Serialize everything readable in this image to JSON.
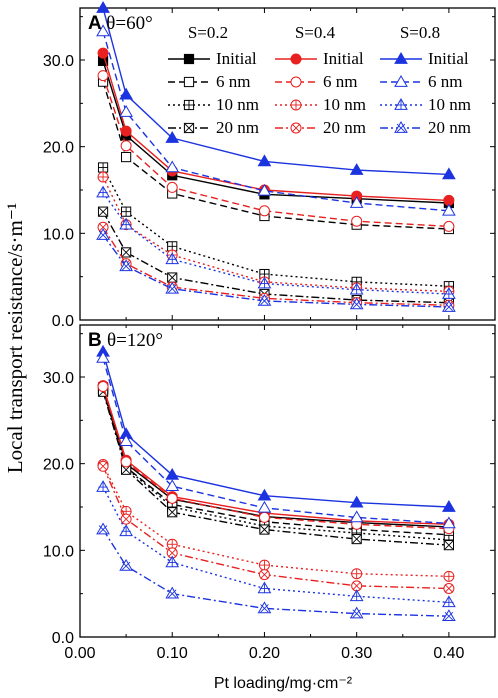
{
  "ylabel": "Local transport resistance/s·m⁻¹",
  "xlabel": "Pt loading/mg·cm⁻²",
  "chart_data": [
    {
      "type": "line",
      "panel_letter": "A",
      "theta_label": "θ=60°",
      "x": [
        0.025,
        0.05,
        0.1,
        0.2,
        0.3,
        0.4
      ],
      "xlim": [
        0,
        0.45
      ],
      "ylim": [
        0,
        36
      ],
      "xticks": [
        "0.00",
        "0.10",
        "0.20",
        "0.30",
        "0.40"
      ],
      "yticks": [
        "0.0",
        "10.0",
        "20.0",
        "30.0"
      ],
      "legend": {
        "placement": "top-right",
        "group_headers": [
          "S=0.2",
          "S=0.4",
          "S=0.8"
        ],
        "row_labels": [
          "Initial",
          "6 nm",
          "10 nm",
          "20 nm"
        ]
      },
      "series": [
        {
          "name": "Initial",
          "group": "S=0.2",
          "color": "#000000",
          "dash": "solid",
          "marker": "square-filled",
          "values": [
            29.9,
            21.3,
            16.7,
            14.5,
            14.0,
            13.5
          ]
        },
        {
          "name": "6 nm",
          "group": "S=0.2",
          "color": "#000000",
          "dash": "dash",
          "marker": "square-open",
          "values": [
            27.5,
            18.8,
            14.6,
            12.0,
            11.0,
            10.5
          ]
        },
        {
          "name": "10 nm",
          "group": "S=0.2",
          "color": "#000000",
          "dash": "dot",
          "marker": "square-plus",
          "values": [
            17.6,
            12.5,
            8.5,
            5.3,
            4.4,
            3.9
          ]
        },
        {
          "name": "20 nm",
          "group": "S=0.2",
          "color": "#000000",
          "dash": "dashdot",
          "marker": "square-x",
          "values": [
            12.5,
            7.8,
            4.9,
            3.0,
            2.3,
            2.0
          ]
        },
        {
          "name": "Initial",
          "group": "S=0.4",
          "color": "#e8201f",
          "dash": "solid",
          "marker": "circle-filled",
          "values": [
            30.8,
            21.8,
            17.2,
            15.0,
            14.3,
            13.8
          ]
        },
        {
          "name": "6 nm",
          "group": "S=0.4",
          "color": "#e8201f",
          "dash": "dash",
          "marker": "circle-open",
          "values": [
            28.2,
            20.1,
            15.3,
            12.6,
            11.4,
            10.8
          ]
        },
        {
          "name": "10 nm",
          "group": "S=0.4",
          "color": "#e8201f",
          "dash": "dot",
          "marker": "circle-plus",
          "values": [
            16.5,
            11.0,
            7.5,
            4.4,
            3.7,
            3.3
          ]
        },
        {
          "name": "20 nm",
          "group": "S=0.4",
          "color": "#e8201f",
          "dash": "dashdot",
          "marker": "circle-x",
          "values": [
            10.7,
            6.5,
            3.8,
            2.5,
            2.0,
            1.7
          ]
        },
        {
          "name": "Initial",
          "group": "S=0.8",
          "color": "#1c34e0",
          "dash": "solid",
          "marker": "triangle-filled",
          "values": [
            36.0,
            26.0,
            21.0,
            18.3,
            17.3,
            16.8
          ]
        },
        {
          "name": "6 nm",
          "group": "S=0.8",
          "color": "#1c34e0",
          "dash": "dash",
          "marker": "triangle-open",
          "values": [
            33.3,
            24.0,
            17.6,
            14.9,
            13.5,
            12.6
          ]
        },
        {
          "name": "10 nm",
          "group": "S=0.8",
          "color": "#1c34e0",
          "dash": "dot",
          "marker": "triangle-plus",
          "values": [
            14.7,
            11.0,
            7.0,
            4.2,
            3.5,
            3.0
          ]
        },
        {
          "name": "20 nm",
          "group": "S=0.8",
          "color": "#1c34e0",
          "dash": "dashdot",
          "marker": "triangle-x",
          "values": [
            9.8,
            6.2,
            3.6,
            2.2,
            1.8,
            1.5
          ]
        }
      ]
    },
    {
      "type": "line",
      "panel_letter": "B",
      "theta_label": "θ=120°",
      "x": [
        0.025,
        0.05,
        0.1,
        0.2,
        0.3,
        0.4
      ],
      "xlim": [
        0,
        0.45
      ],
      "ylim": [
        0,
        36
      ],
      "xticks": [
        "0.00",
        "0.10",
        "0.20",
        "0.30",
        "0.40"
      ],
      "yticks": [
        "0.0",
        "10.0",
        "20.0",
        "30.0"
      ],
      "series": [
        {
          "name": "Initial",
          "group": "S=0.2",
          "color": "#000000",
          "dash": "solid",
          "marker": "square-filled",
          "values": [
            28.8,
            20.0,
            15.9,
            13.9,
            13.2,
            12.7
          ]
        },
        {
          "name": "6 nm",
          "group": "S=0.2",
          "color": "#000000",
          "dash": "dash",
          "marker": "square-open",
          "values": [
            28.6,
            19.6,
            15.3,
            13.3,
            12.4,
            11.8
          ]
        },
        {
          "name": "10 nm",
          "group": "S=0.2",
          "color": "#000000",
          "dash": "dot",
          "marker": "square-plus",
          "values": [
            28.5,
            19.5,
            15.0,
            12.8,
            12.0,
            11.2
          ]
        },
        {
          "name": "20 nm",
          "group": "S=0.2",
          "color": "#000000",
          "dash": "dashdot",
          "marker": "square-x",
          "values": [
            28.3,
            19.3,
            14.4,
            12.4,
            11.3,
            10.6
          ]
        },
        {
          "name": "Initial",
          "group": "S=0.4",
          "color": "#e8201f",
          "dash": "solid",
          "marker": "circle-filled",
          "values": [
            29.0,
            20.4,
            16.2,
            14.3,
            13.4,
            13.0
          ]
        },
        {
          "name": "6 nm",
          "group": "S=0.4",
          "color": "#e8201f",
          "dash": "dash",
          "marker": "circle-open",
          "values": [
            28.9,
            20.2,
            16.0,
            13.8,
            13.0,
            12.5
          ]
        },
        {
          "name": "10 nm",
          "group": "S=0.4",
          "color": "#e8201f",
          "dash": "dot",
          "marker": "circle-plus",
          "values": [
            19.9,
            14.5,
            10.7,
            8.3,
            7.3,
            7.0
          ]
        },
        {
          "name": "20 nm",
          "group": "S=0.4",
          "color": "#e8201f",
          "dash": "dashdot",
          "marker": "circle-x",
          "values": [
            19.7,
            13.6,
            9.7,
            7.2,
            5.9,
            5.6
          ]
        },
        {
          "name": "Initial",
          "group": "S=0.8",
          "color": "#1c34e0",
          "dash": "solid",
          "marker": "triangle-filled",
          "values": [
            32.9,
            23.4,
            18.7,
            16.3,
            15.5,
            15.0
          ]
        },
        {
          "name": "6 nm",
          "group": "S=0.8",
          "color": "#1c34e0",
          "dash": "dash",
          "marker": "triangle-open",
          "values": [
            32.2,
            22.6,
            17.4,
            14.9,
            13.8,
            13.1
          ]
        },
        {
          "name": "10 nm",
          "group": "S=0.8",
          "color": "#1c34e0",
          "dash": "dot",
          "marker": "triangle-plus",
          "values": [
            17.3,
            12.2,
            8.6,
            5.6,
            4.7,
            4.0
          ]
        },
        {
          "name": "20 nm",
          "group": "S=0.8",
          "color": "#1c34e0",
          "dash": "dashdot",
          "marker": "triangle-x",
          "values": [
            12.4,
            8.2,
            5.0,
            3.3,
            2.7,
            2.4
          ]
        }
      ]
    }
  ]
}
